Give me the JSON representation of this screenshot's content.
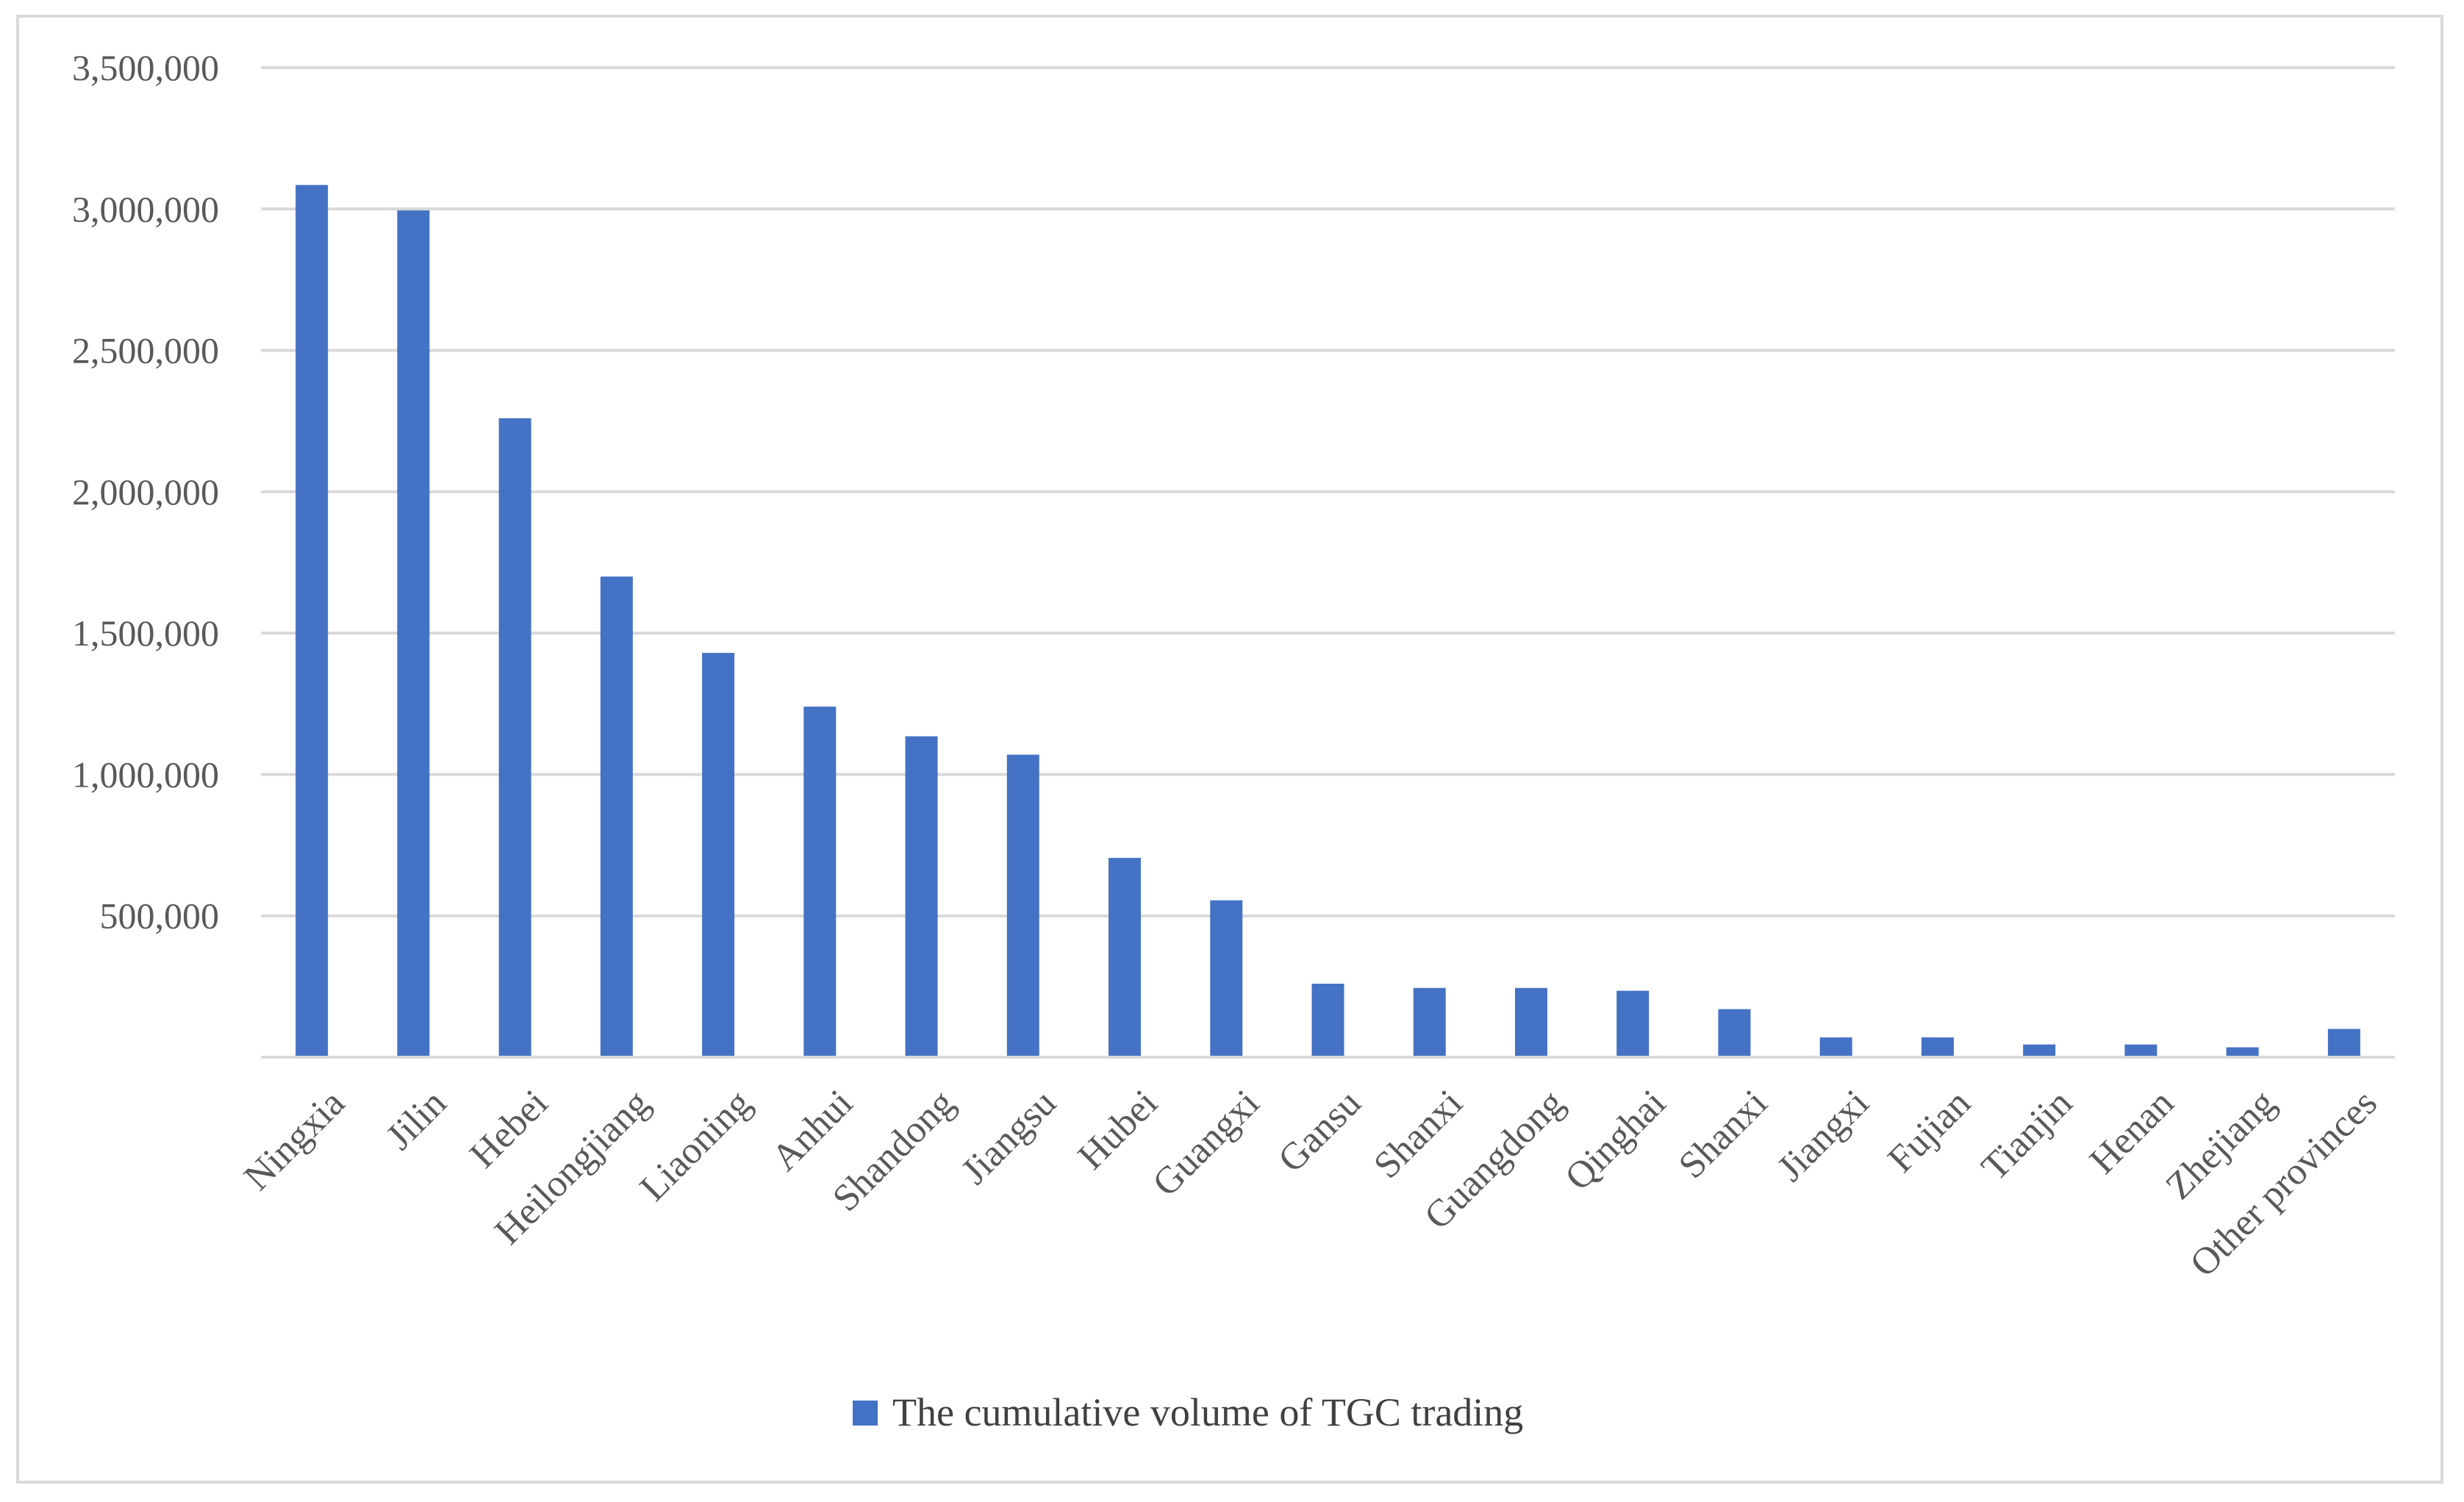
{
  "chart_data": {
    "type": "bar",
    "title": "",
    "xlabel": "",
    "ylabel": "",
    "ylim": [
      0,
      3500000
    ],
    "yticks": [
      0,
      500000,
      1000000,
      1500000,
      2000000,
      2500000,
      3000000,
      3500000
    ],
    "ytick_labels": [
      "",
      "500,000",
      "1,000,000",
      "1,500,000",
      "2,000,000",
      "2,500,000",
      "3,000,000",
      "3,500,000"
    ],
    "grid": true,
    "categories": [
      "Ningxia",
      "Jilin",
      "Hebei",
      "Heilongjiang",
      "Liaoning",
      "Anhui",
      "Shandong",
      "Jiangsu",
      "Hubei",
      "Guangxi",
      "Gansu",
      "Shanxi",
      "Guangdong",
      "Qinghai",
      "Shanxi",
      "Jiangxi",
      "Fujian",
      "Tianjin",
      "Henan",
      "Zhejiang",
      "Other provinces"
    ],
    "series": [
      {
        "name": "The cumulative volume of TGC trading",
        "color": "#4472c4",
        "values": [
          3085000,
          2995000,
          2260000,
          1700000,
          1430000,
          1240000,
          1135000,
          1070000,
          705000,
          555000,
          260000,
          245000,
          245000,
          235000,
          170000,
          70000,
          70000,
          45000,
          45000,
          35000,
          100000
        ]
      }
    ],
    "legend_position": "bottom"
  }
}
